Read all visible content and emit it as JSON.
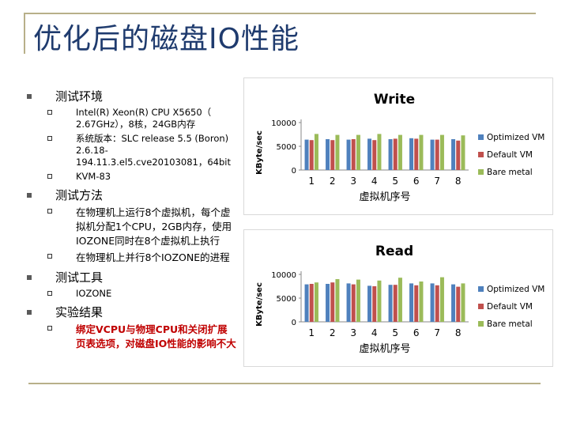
{
  "slide": {
    "title": "优化后的磁盘IO性能",
    "sections": [
      {
        "heading": "测试环境",
        "items": [
          "Intel(R) Xeon(R) CPU X5650（ 2.67GHz），8核，24GB内存",
          "系统版本：SLC release 5.5 (Boron) 2.6.18-194.11.3.el5.cve20103081，64bit",
          "KVM-83"
        ]
      },
      {
        "heading": "测试方法",
        "items": [
          "在物理机上运行8个虚拟机，每个虚拟机分配1个CPU，2GB内存，使用IOZONE同时在8个虚拟机上执行",
          "在物理机上并行8个IOZONE的进程"
        ]
      },
      {
        "heading": "测试工具",
        "items": [
          "IOZONE"
        ]
      },
      {
        "heading": "实验结果",
        "items": [
          "绑定VCPU与物理CPU和关闭扩展页表选项，对磁盘IO性能的影响不大"
        ]
      }
    ]
  },
  "chart_data": [
    {
      "type": "bar",
      "title": "Write",
      "xlabel": "虚拟机序号",
      "ylabel": "KByte/sec",
      "ylim": [
        0,
        10000
      ],
      "yticks": [
        0,
        5000,
        10000
      ],
      "grid": false,
      "legend_position": "right",
      "categories": [
        "1",
        "2",
        "3",
        "4",
        "5",
        "6",
        "7",
        "8"
      ],
      "series": [
        {
          "name": "Optimized VM",
          "color": "#4f81bd",
          "values": [
            6400,
            6500,
            6400,
            6600,
            6500,
            6700,
            6400,
            6500
          ]
        },
        {
          "name": "Default VM",
          "color": "#c0504d",
          "values": [
            6300,
            6300,
            6500,
            6300,
            6600,
            6600,
            6400,
            6200
          ]
        },
        {
          "name": "Bare metal",
          "color": "#9bbb59",
          "values": [
            7600,
            7400,
            7400,
            7600,
            7400,
            7400,
            7400,
            7300
          ]
        }
      ]
    },
    {
      "type": "bar",
      "title": "Read",
      "xlabel": "虚拟机序号",
      "ylabel": "KByte/sec",
      "ylim": [
        0,
        10000
      ],
      "yticks": [
        0,
        5000,
        10000
      ],
      "grid": false,
      "legend_position": "right",
      "categories": [
        "1",
        "2",
        "3",
        "4",
        "5",
        "6",
        "7",
        "8"
      ],
      "series": [
        {
          "name": "Optimized VM",
          "color": "#4f81bd",
          "values": [
            7900,
            8000,
            8100,
            7600,
            7800,
            8100,
            8100,
            7900
          ]
        },
        {
          "name": "Default VM",
          "color": "#c0504d",
          "values": [
            8000,
            8300,
            7900,
            7500,
            7800,
            7700,
            7700,
            7400
          ]
        },
        {
          "name": "Bare metal",
          "color": "#9bbb59",
          "values": [
            8300,
            9000,
            8900,
            8700,
            9300,
            8500,
            9400,
            8100
          ]
        }
      ]
    }
  ]
}
